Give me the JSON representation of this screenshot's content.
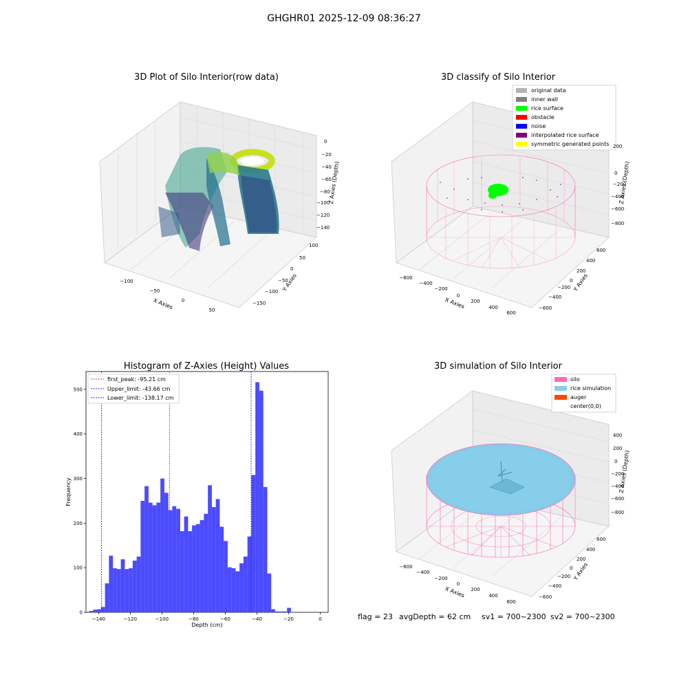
{
  "figure": {
    "suptitle": "GHGHR01 2025-12-09 08:36:27",
    "footer": {
      "flag": "flag = 23",
      "avg_depth": "avgDepth = 62 cm",
      "sv1": "sv1 = 700~2300",
      "sv2": "sv2 = 700~2300"
    }
  },
  "colors": {
    "hist_bar": "#4b4bff",
    "peak_line": "#e03030",
    "limit_line": "#2020c0",
    "silo_pink": "#ff69b4",
    "rice_sim": "#87ceeb",
    "auger": "#ff4500",
    "rice_surface": "#00ff00",
    "original": "#b3b3b3",
    "inner_wall": "#808080",
    "obstacle": "#ff0000",
    "noise": "#0000ff",
    "interpolated": "#800080",
    "symmetric": "#ffff00"
  },
  "chart_data": [
    {
      "type": "scatter3d",
      "title": "3D Plot of Silo Interior(row data)",
      "xlabel": "X Axies",
      "ylabel": "Y Axies",
      "zlabel": "Z Axies (Depth)",
      "x_ticks": [
        "−100",
        "−50",
        "0",
        "50"
      ],
      "y_ticks": [
        "100",
        "50",
        "0",
        "−50",
        "−100",
        "−150"
      ],
      "z_ticks": [
        "0",
        "−20",
        "−40",
        "−60",
        "−80",
        "−100",
        "−120",
        "−140"
      ],
      "colormap": "viridis"
    },
    {
      "type": "scatter3d",
      "title": "3D classify of Silo Interior",
      "xlabel": "X Axies",
      "ylabel": "Y Axies",
      "zlabel": "Z Axies (Depth)",
      "x_ticks": [
        "−600",
        "−400",
        "−200",
        "0",
        "200",
        "400",
        "600"
      ],
      "y_ticks": [
        "600",
        "400",
        "200",
        "0",
        "−200",
        "−400",
        "−600"
      ],
      "z_ticks": [
        "200",
        "0",
        "−200",
        "−400",
        "−600",
        "−800"
      ],
      "legend": [
        {
          "label": "original data",
          "color": "#b3b3b3"
        },
        {
          "label": "inner wall",
          "color": "#808080"
        },
        {
          "label": "rice surface",
          "color": "#00ff00"
        },
        {
          "label": "obstacle",
          "color": "#ff0000"
        },
        {
          "label": "noise",
          "color": "#0000ff"
        },
        {
          "label": "interpolated rice surface",
          "color": "#800080"
        },
        {
          "label": "symmetric generated points",
          "color": "#ffff00"
        }
      ],
      "legend_loc": "upper right"
    },
    {
      "type": "bar",
      "title": "Histogram of Z-Axies (Height) Values",
      "xlabel": "Depth (cm)",
      "ylabel": "Frequency",
      "xlim": [
        -148,
        5
      ],
      "ylim": [
        0,
        540
      ],
      "x_ticks": [
        -140,
        -120,
        -100,
        -80,
        -60,
        -40,
        -20,
        0
      ],
      "y_ticks": [
        0,
        100,
        200,
        300,
        400,
        500
      ],
      "bin_width": 2.5,
      "bins": [
        {
          "x": -146.0,
          "v": 3
        },
        {
          "x": -143.5,
          "v": 6
        },
        {
          "x": -141.0,
          "v": 7
        },
        {
          "x": -138.5,
          "v": 12
        },
        {
          "x": -136.0,
          "v": 65
        },
        {
          "x": -133.5,
          "v": 127
        },
        {
          "x": -131.0,
          "v": 99
        },
        {
          "x": -128.5,
          "v": 97
        },
        {
          "x": -126.0,
          "v": 119
        },
        {
          "x": -123.5,
          "v": 97
        },
        {
          "x": -121.0,
          "v": 99
        },
        {
          "x": -118.5,
          "v": 116
        },
        {
          "x": -116.0,
          "v": 125
        },
        {
          "x": -113.5,
          "v": 250
        },
        {
          "x": -111.0,
          "v": 283
        },
        {
          "x": -108.5,
          "v": 246
        },
        {
          "x": -106.0,
          "v": 240
        },
        {
          "x": -103.5,
          "v": 246
        },
        {
          "x": -101.0,
          "v": 300
        },
        {
          "x": -98.5,
          "v": 268
        },
        {
          "x": -96.0,
          "v": 229
        },
        {
          "x": -93.5,
          "v": 238
        },
        {
          "x": -91.0,
          "v": 232
        },
        {
          "x": -88.5,
          "v": 182
        },
        {
          "x": -86.0,
          "v": 215
        },
        {
          "x": -83.5,
          "v": 182
        },
        {
          "x": -81.0,
          "v": 195
        },
        {
          "x": -78.5,
          "v": 198
        },
        {
          "x": -76.0,
          "v": 207
        },
        {
          "x": -73.5,
          "v": 221
        },
        {
          "x": -71.0,
          "v": 285
        },
        {
          "x": -68.5,
          "v": 236
        },
        {
          "x": -66.0,
          "v": 254
        },
        {
          "x": -63.5,
          "v": 192
        },
        {
          "x": -61.0,
          "v": 160
        },
        {
          "x": -58.5,
          "v": 101
        },
        {
          "x": -56.0,
          "v": 99
        },
        {
          "x": -53.5,
          "v": 92
        },
        {
          "x": -51.0,
          "v": 110
        },
        {
          "x": -48.5,
          "v": 125
        },
        {
          "x": -46.0,
          "v": 170
        },
        {
          "x": -43.5,
          "v": 308
        },
        {
          "x": -41.0,
          "v": 516
        },
        {
          "x": -38.5,
          "v": 497
        },
        {
          "x": -36.0,
          "v": 281
        },
        {
          "x": -33.5,
          "v": 87
        },
        {
          "x": -31.0,
          "v": 7
        },
        {
          "x": -28.5,
          "v": 2
        },
        {
          "x": -26.0,
          "v": 2
        },
        {
          "x": -23.5,
          "v": 2
        },
        {
          "x": -21.0,
          "v": 10
        }
      ],
      "vlines": [
        {
          "label": "first_peak: -95.21 cm",
          "x": -95.21,
          "color": "#e03030"
        },
        {
          "label": "Upper_limit: -43.66 cm",
          "x": -43.66,
          "color": "#2020c0"
        },
        {
          "label": "Lower_limit: -138.17 cm",
          "x": -138.17,
          "color": "#2020c0"
        }
      ]
    },
    {
      "type": "surface3d",
      "title": "3D simulation of Silo Interior",
      "xlabel": "X Axies",
      "ylabel": "Y Axies",
      "zlabel": "Z Axies (Depth)",
      "x_ticks": [
        "−600",
        "−400",
        "−200",
        "0",
        "200",
        "400",
        "600"
      ],
      "y_ticks": [
        "600",
        "400",
        "200",
        "0",
        "−200",
        "−400",
        "−600"
      ],
      "z_ticks": [
        "400",
        "200",
        "0",
        "−200",
        "−400",
        "−600",
        "−800"
      ],
      "legend": [
        {
          "label": "silo",
          "color": "#ff69b4"
        },
        {
          "label": "rice simulation",
          "color": "#87ceeb"
        },
        {
          "label": "auger",
          "color": "#ff4500"
        },
        {
          "label": "center(0,0)",
          "color": ""
        }
      ],
      "legend_loc": "upper right"
    }
  ]
}
